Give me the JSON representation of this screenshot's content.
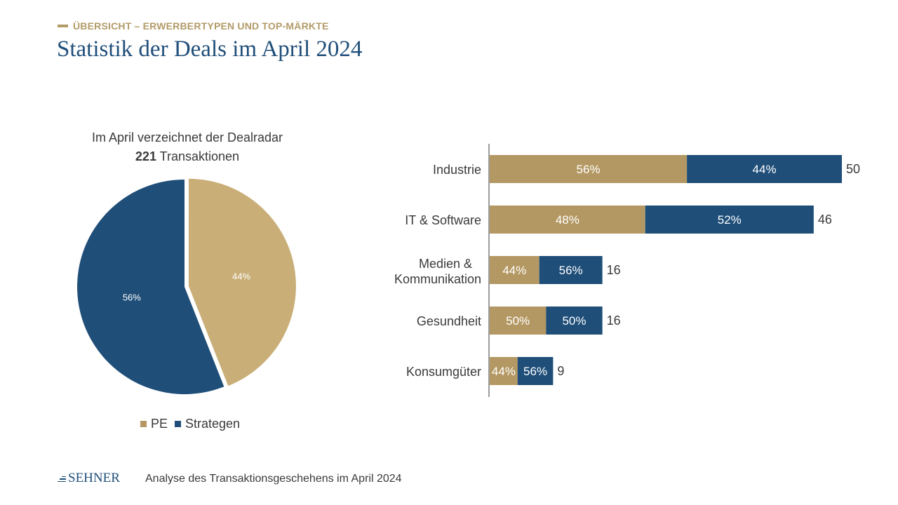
{
  "header": {
    "kicker": "ÜBERSICHT – ERWERBERTYPEN UND TOP-MÄRKTE",
    "title": "Statistik der Deals im April 2024"
  },
  "pie": {
    "caption_line1": "Im April verzeichnet der Dealradar",
    "caption_count": "221",
    "caption_suffix": "Transaktionen"
  },
  "legend": {
    "pe": "PE",
    "strategen": "Strategen"
  },
  "colors": {
    "pe": "#b49863",
    "pe_pie": "#c9ae77",
    "strategen": "#1f4e79",
    "accent": "#b39b68"
  },
  "chart_data": [
    {
      "type": "pie",
      "title": "",
      "slices": [
        {
          "label": "PE",
          "value": 44,
          "display": "44%"
        },
        {
          "label": "Strategen",
          "value": 56,
          "display": "56%"
        }
      ]
    },
    {
      "type": "bar",
      "orientation": "horizontal",
      "stacked": true,
      "categories": [
        [
          "Industrie"
        ],
        [
          "IT & Software"
        ],
        [
          "Medien &",
          "Kommunikation"
        ],
        [
          "Gesundheit"
        ],
        [
          "Konsumgüter"
        ]
      ],
      "totals": [
        50,
        46,
        16,
        16,
        9
      ],
      "series": [
        {
          "name": "PE",
          "percent_labels": [
            "56%",
            "48%",
            "44%",
            "50%",
            "44%"
          ],
          "share": [
            0.56,
            0.48,
            0.44,
            0.5,
            0.44
          ]
        },
        {
          "name": "Strategen",
          "percent_labels": [
            "44%",
            "52%",
            "56%",
            "50%",
            "56%"
          ],
          "share": [
            0.44,
            0.52,
            0.56,
            0.5,
            0.56
          ]
        }
      ],
      "xlim": [
        0,
        50
      ],
      "legend": "bottom (shared with pie)"
    }
  ],
  "footer": {
    "logo_text": "SEHNER",
    "text": "Analyse des Transaktionsgeschehens im April 2024"
  }
}
